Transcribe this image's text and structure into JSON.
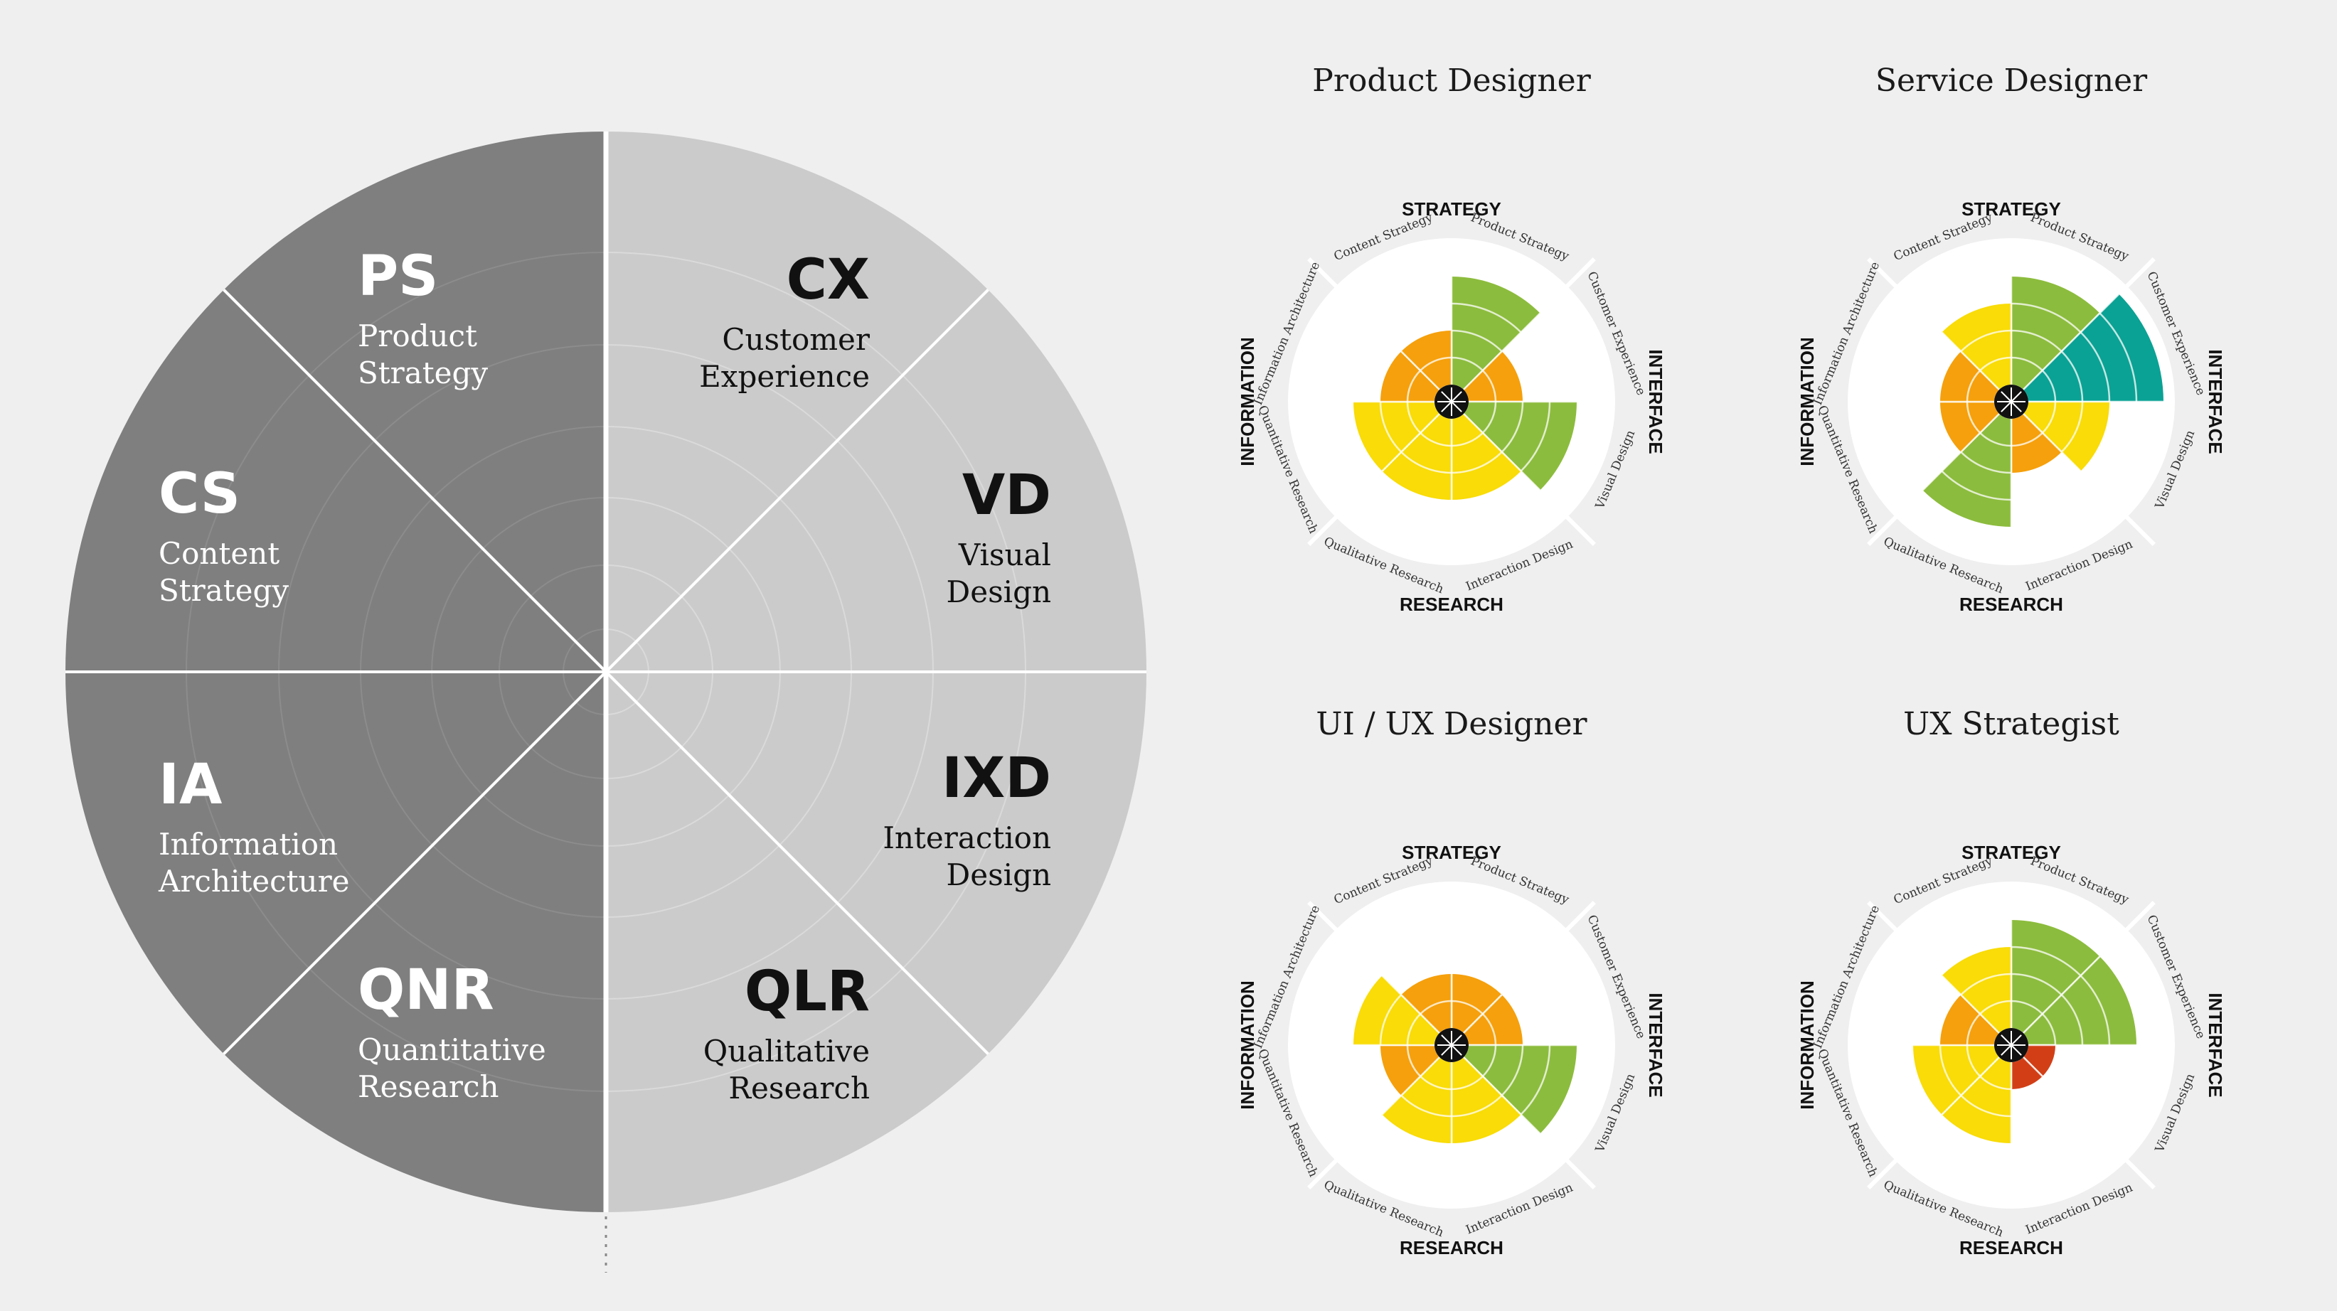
{
  "colors": {
    "background": "#efefef",
    "dark_half": "#7f7f7f",
    "light_half": "#cbcbcb",
    "divider": "#ffffff",
    "ring_dark": "#8c8c8c",
    "ring_light": "#dadada",
    "level_1": "#d23f17",
    "level_2": "#f5a00c",
    "level_3": "#f9dc08",
    "level_4": "#8cbc3d",
    "level_5": "#0aa294"
  },
  "segments": [
    {
      "abbr": "PS",
      "name_lines": [
        "Product",
        "Strategy"
      ],
      "side": "dark"
    },
    {
      "abbr": "CX",
      "name_lines": [
        "Customer",
        "Experience"
      ],
      "side": "light"
    },
    {
      "abbr": "VD",
      "name_lines": [
        "Visual",
        "Design"
      ],
      "side": "light"
    },
    {
      "abbr": "IXD",
      "name_lines": [
        "Interaction",
        "Design"
      ],
      "side": "light"
    },
    {
      "abbr": "QLR",
      "name_lines": [
        "Qualitative",
        "Research"
      ],
      "side": "light"
    },
    {
      "abbr": "QNR",
      "name_lines": [
        "Quantitative",
        "Research"
      ],
      "side": "dark"
    },
    {
      "abbr": "IA",
      "name_lines": [
        "Information",
        "Architecture"
      ],
      "side": "dark"
    },
    {
      "abbr": "CS",
      "name_lines": [
        "Content",
        "Strategy"
      ],
      "side": "dark"
    }
  ],
  "group_labels": {
    "top": "STRATEGY",
    "right": "INTERFACE",
    "bottom": "RESEARCH",
    "left": "INFORMATION"
  },
  "spoke_labels": {
    "product_strategy": "Product Strategy",
    "customer_experience": "Customer Experience",
    "visual_design": "Visual Design",
    "interaction_design": "Interaction Design",
    "qualitative_research": "Qualitative Research",
    "quantitative_research": "Quantitative Research",
    "information_architecture": "Information Architecture",
    "content_strategy": "Content Strategy"
  },
  "chart_data": [
    {
      "type": "polar-area",
      "title": "Product Designer",
      "categories": [
        "Product Strategy",
        "Customer Experience",
        "Visual Design",
        "Interaction Design",
        "Qualitative Research",
        "Quantitative Research",
        "Information Architecture",
        "Content Strategy"
      ],
      "values": [
        4,
        2,
        4,
        3,
        3,
        3,
        2,
        2
      ],
      "max": 5
    },
    {
      "type": "polar-area",
      "title": "Service Designer",
      "categories": [
        "Product Strategy",
        "Customer Experience",
        "Visual Design",
        "Interaction Design",
        "Qualitative Research",
        "Quantitative Research",
        "Information Architecture",
        "Content Strategy"
      ],
      "values": [
        4,
        5,
        3,
        2,
        4,
        2,
        2,
        3
      ],
      "max": 5
    },
    {
      "type": "polar-area",
      "title": "UI / UX Designer",
      "categories": [
        "Product Strategy",
        "Customer Experience",
        "Visual Design",
        "Interaction Design",
        "Qualitative Research",
        "Quantitative Research",
        "Information Architecture",
        "Content Strategy"
      ],
      "values": [
        2,
        2,
        4,
        3,
        3,
        2,
        3,
        2
      ],
      "max": 5
    },
    {
      "type": "polar-area",
      "title": "UX Strategist",
      "categories": [
        "Product Strategy",
        "Customer Experience",
        "Visual Design",
        "Interaction Design",
        "Qualitative Research",
        "Quantitative Research",
        "Information Architecture",
        "Content Strategy"
      ],
      "values": [
        4,
        4,
        1,
        1,
        3,
        3,
        2,
        3
      ],
      "max": 5
    }
  ]
}
